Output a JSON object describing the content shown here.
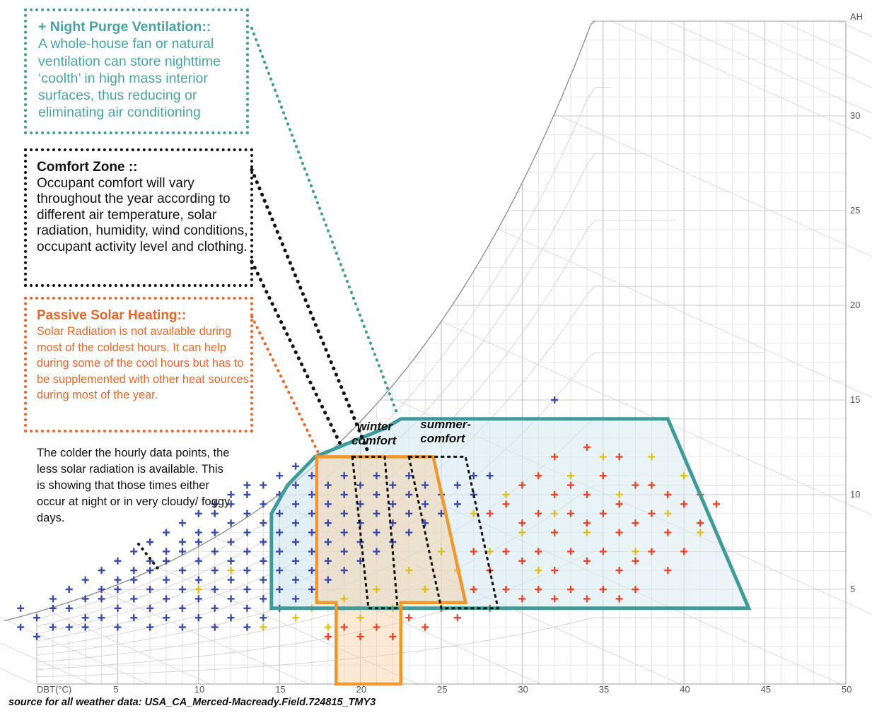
{
  "notes": {
    "night_purge": {
      "title": "+ Night Purge Ventilation::",
      "body": "A whole-house fan or natural ventilation can store nighttime ‘coolth’ in high mass interior surfaces, thus reducing or eliminating air conditioning"
    },
    "comfort_zone": {
      "title": "Comfort Zone ::",
      "body": "Occupant comfort will vary throughout the year according to different air temperature, solar radiation, humidity, wind conditions, occupant activity level and clothing."
    },
    "passive_solar": {
      "title": "Passive Solar Heating::",
      "body": "Solar Radiation is not available during most of the coldest hours. It can help during some of the cool hours but has to be supplemented with other heat sources during most of the year."
    },
    "cold_points": "The colder the hourly data points, the less solar radiation is available. This is showing that those times either occur at night or in very cloudy/ foggy days.",
    "source": "source for all weather data: USA_CA_Merced-Macready.Field.724815_TMY3"
  },
  "colors": {
    "night_purge": "#3f9a9a",
    "comfort": "#111111",
    "passive_solar": "#f0962a",
    "solar_text": "#e8662a",
    "cold_point": "#3b4aa8",
    "warm_point": "#e8452a",
    "mid_point": "#e0c020"
  },
  "chart_data": {
    "type": "scatter",
    "title": "",
    "xlabel": "DBT(°C)",
    "ylabel": "AH",
    "x_ticks": [
      "5",
      "10",
      "15",
      "20",
      "25",
      "30",
      "35",
      "40",
      "45",
      "50"
    ],
    "y_ticks": [
      "5",
      "10",
      "15",
      "20",
      "25",
      "30"
    ],
    "xlim": [
      0,
      50
    ],
    "ylim": [
      0,
      35
    ],
    "grid": true,
    "zones": [
      {
        "name": "",
        "role": "night purge ventilation zone",
        "points": [
          [
            14.5,
            4
          ],
          [
            44,
            4
          ],
          [
            39,
            14
          ],
          [
            22.5,
            14
          ],
          [
            21.5,
            13.5
          ],
          [
            17.2,
            12
          ],
          [
            15.5,
            10.5
          ],
          [
            14.5,
            9
          ]
        ]
      },
      {
        "name": "",
        "role": "passive solar heating zone",
        "points": [
          [
            17.3,
            12
          ],
          [
            24.5,
            12
          ],
          [
            26.5,
            4.3
          ],
          [
            22.5,
            4.3
          ],
          [
            22.5,
            0
          ],
          [
            18.5,
            0
          ],
          [
            18.5,
            4.3
          ],
          [
            17.3,
            4.3
          ]
        ]
      },
      {
        "name": "winter comfort",
        "points": [
          [
            19.5,
            12
          ],
          [
            21.5,
            12
          ],
          [
            22.3,
            4
          ],
          [
            20.5,
            4
          ]
        ]
      },
      {
        "name": "summer comfort",
        "points": [
          [
            23,
            12
          ],
          [
            26.5,
            12
          ],
          [
            28.5,
            4
          ],
          [
            25,
            4
          ]
        ]
      }
    ],
    "zone_labels": [
      "winter\ncomfort",
      "summer-\ncomfort"
    ],
    "series": [
      {
        "key": "cold",
        "points": [
          [
            -1,
            3
          ],
          [
            -1,
            4
          ],
          [
            0,
            2.5
          ],
          [
            0,
            3.5
          ],
          [
            1,
            3
          ],
          [
            1,
            4
          ],
          [
            1,
            4.5
          ],
          [
            2,
            3
          ],
          [
            2,
            4
          ],
          [
            2,
            5
          ],
          [
            3,
            3
          ],
          [
            3,
            3.5
          ],
          [
            3,
            4.5
          ],
          [
            3,
            5.5
          ],
          [
            4,
            3.5
          ],
          [
            4,
            4.5
          ],
          [
            4,
            5
          ],
          [
            4,
            6
          ],
          [
            5,
            3
          ],
          [
            5,
            4
          ],
          [
            5,
            5
          ],
          [
            5,
            5.5
          ],
          [
            5,
            6.5
          ],
          [
            6,
            3.5
          ],
          [
            6,
            4.5
          ],
          [
            6,
            5.5
          ],
          [
            6,
            6
          ],
          [
            6,
            7
          ],
          [
            7,
            3
          ],
          [
            7,
            4
          ],
          [
            7,
            5
          ],
          [
            7,
            6
          ],
          [
            7,
            6.5
          ],
          [
            7,
            7.5
          ],
          [
            8,
            3.5
          ],
          [
            8,
            4.5
          ],
          [
            8,
            5.5
          ],
          [
            8,
            6.5
          ],
          [
            8,
            7
          ],
          [
            8,
            8
          ],
          [
            9,
            3
          ],
          [
            9,
            4
          ],
          [
            9,
            5
          ],
          [
            9,
            6
          ],
          [
            9,
            7
          ],
          [
            9,
            7.5
          ],
          [
            9,
            8.5
          ],
          [
            10,
            3.5
          ],
          [
            10,
            4.5
          ],
          [
            10,
            5.5
          ],
          [
            10,
            6.5
          ],
          [
            10,
            7.5
          ],
          [
            10,
            8
          ],
          [
            10,
            9
          ],
          [
            11,
            3
          ],
          [
            11,
            4
          ],
          [
            11,
            5
          ],
          [
            11,
            6
          ],
          [
            11,
            7
          ],
          [
            11,
            8
          ],
          [
            11,
            9
          ],
          [
            11,
            9.5
          ],
          [
            12,
            3.5
          ],
          [
            12,
            4.5
          ],
          [
            12,
            5.5
          ],
          [
            12,
            6.5
          ],
          [
            12,
            7.5
          ],
          [
            12,
            8.5
          ],
          [
            12,
            9.5
          ],
          [
            12,
            10
          ],
          [
            13,
            3
          ],
          [
            13,
            4
          ],
          [
            13,
            5
          ],
          [
            13,
            6
          ],
          [
            13,
            7
          ],
          [
            13,
            8
          ],
          [
            13,
            9
          ],
          [
            13,
            10
          ],
          [
            13,
            10.5
          ],
          [
            14,
            3.5
          ],
          [
            14,
            4.5
          ],
          [
            14,
            5.5
          ],
          [
            14,
            6.5
          ],
          [
            14,
            7.5
          ],
          [
            14,
            8.5
          ],
          [
            14,
            9.5
          ],
          [
            14,
            10.5
          ],
          [
            15,
            4
          ],
          [
            15,
            5
          ],
          [
            15,
            6
          ],
          [
            15,
            7
          ],
          [
            15,
            8
          ],
          [
            15,
            9
          ],
          [
            15,
            10
          ],
          [
            15,
            11
          ],
          [
            16,
            4.5
          ],
          [
            16,
            5.5
          ],
          [
            16,
            6.5
          ],
          [
            16,
            7.5
          ],
          [
            16,
            8.5
          ],
          [
            16,
            9.5
          ],
          [
            16,
            10.5
          ],
          [
            16,
            11.5
          ],
          [
            17,
            5
          ],
          [
            17,
            6
          ],
          [
            17,
            7
          ],
          [
            17,
            8
          ],
          [
            17,
            9
          ],
          [
            17,
            10
          ],
          [
            17,
            11
          ],
          [
            18,
            5.5
          ],
          [
            18,
            6.5
          ],
          [
            18,
            7.5
          ],
          [
            18,
            8.5
          ],
          [
            18,
            9.5
          ],
          [
            18,
            10.5
          ],
          [
            19,
            6
          ],
          [
            19,
            7
          ],
          [
            19,
            8
          ],
          [
            19,
            9
          ],
          [
            19,
            10
          ],
          [
            19,
            11
          ],
          [
            20,
            6.5
          ],
          [
            20,
            7.5
          ],
          [
            20,
            8.5
          ],
          [
            20,
            9.5
          ],
          [
            20,
            10.5
          ],
          [
            21,
            7
          ],
          [
            21,
            8
          ],
          [
            21,
            9
          ],
          [
            21,
            10
          ],
          [
            21,
            11
          ],
          [
            22,
            7.5
          ],
          [
            22,
            8.5
          ],
          [
            22,
            9.5
          ],
          [
            22,
            10.5
          ],
          [
            23,
            8
          ],
          [
            23,
            9
          ],
          [
            23,
            10
          ],
          [
            23,
            11
          ],
          [
            24,
            8.5
          ],
          [
            24,
            9.5
          ],
          [
            24,
            10.5
          ],
          [
            25,
            9
          ],
          [
            25,
            10
          ],
          [
            26,
            9.5
          ],
          [
            26,
            10.5
          ],
          [
            27,
            10
          ],
          [
            27,
            11
          ],
          [
            28,
            11
          ],
          [
            32,
            15
          ]
        ]
      },
      {
        "key": "mid",
        "points": [
          [
            10,
            5
          ],
          [
            12,
            6
          ],
          [
            14,
            3
          ],
          [
            16,
            3.5
          ],
          [
            17,
            4
          ],
          [
            18,
            3
          ],
          [
            19,
            4.5
          ],
          [
            20,
            3.5
          ],
          [
            21,
            5
          ],
          [
            22,
            4
          ],
          [
            23,
            6
          ],
          [
            24,
            5
          ],
          [
            25,
            7
          ],
          [
            26,
            6
          ],
          [
            27,
            9
          ],
          [
            28,
            7
          ],
          [
            29,
            10
          ],
          [
            30,
            8
          ],
          [
            31,
            6
          ],
          [
            32,
            9
          ],
          [
            33,
            11
          ],
          [
            34,
            8
          ],
          [
            35,
            12
          ],
          [
            36,
            10
          ],
          [
            37,
            7
          ],
          [
            38,
            12
          ],
          [
            39,
            9
          ],
          [
            40,
            11
          ],
          [
            41,
            8
          ]
        ]
      },
      {
        "key": "warm",
        "points": [
          [
            18,
            2.5
          ],
          [
            19,
            3
          ],
          [
            20,
            2.5
          ],
          [
            21,
            3
          ],
          [
            22,
            2.5
          ],
          [
            23,
            3.5
          ],
          [
            24,
            3
          ],
          [
            25,
            4
          ],
          [
            26,
            3.5
          ],
          [
            27,
            5
          ],
          [
            27,
            7
          ],
          [
            28,
            4
          ],
          [
            28,
            6
          ],
          [
            28,
            9
          ],
          [
            29,
            5
          ],
          [
            29,
            7
          ],
          [
            29,
            9.5
          ],
          [
            30,
            4.5
          ],
          [
            30,
            6.5
          ],
          [
            30,
            8.5
          ],
          [
            30,
            10.5
          ],
          [
            31,
            5
          ],
          [
            31,
            7
          ],
          [
            31,
            9
          ],
          [
            31,
            11
          ],
          [
            32,
            4.5
          ],
          [
            32,
            6
          ],
          [
            32,
            8
          ],
          [
            32,
            10
          ],
          [
            32,
            12
          ],
          [
            33,
            5
          ],
          [
            33,
            7
          ],
          [
            33,
            9
          ],
          [
            33,
            10.5
          ],
          [
            34,
            4.5
          ],
          [
            34,
            6.5
          ],
          [
            34,
            8.5
          ],
          [
            34,
            10
          ],
          [
            34,
            12.5
          ],
          [
            35,
            5
          ],
          [
            35,
            7
          ],
          [
            35,
            9
          ],
          [
            35,
            11
          ],
          [
            36,
            4.5
          ],
          [
            36,
            6
          ],
          [
            36,
            8
          ],
          [
            36,
            9.5
          ],
          [
            36,
            12
          ],
          [
            37,
            5
          ],
          [
            37,
            6.5
          ],
          [
            37,
            8.5
          ],
          [
            37,
            10.5
          ],
          [
            38,
            7
          ],
          [
            38,
            9
          ],
          [
            38,
            10.5
          ],
          [
            39,
            6
          ],
          [
            39,
            8
          ],
          [
            39,
            10
          ],
          [
            40,
            7
          ],
          [
            40,
            9.5
          ],
          [
            41,
            8.5
          ],
          [
            41,
            10
          ],
          [
            42,
            9.5
          ]
        ]
      }
    ]
  }
}
